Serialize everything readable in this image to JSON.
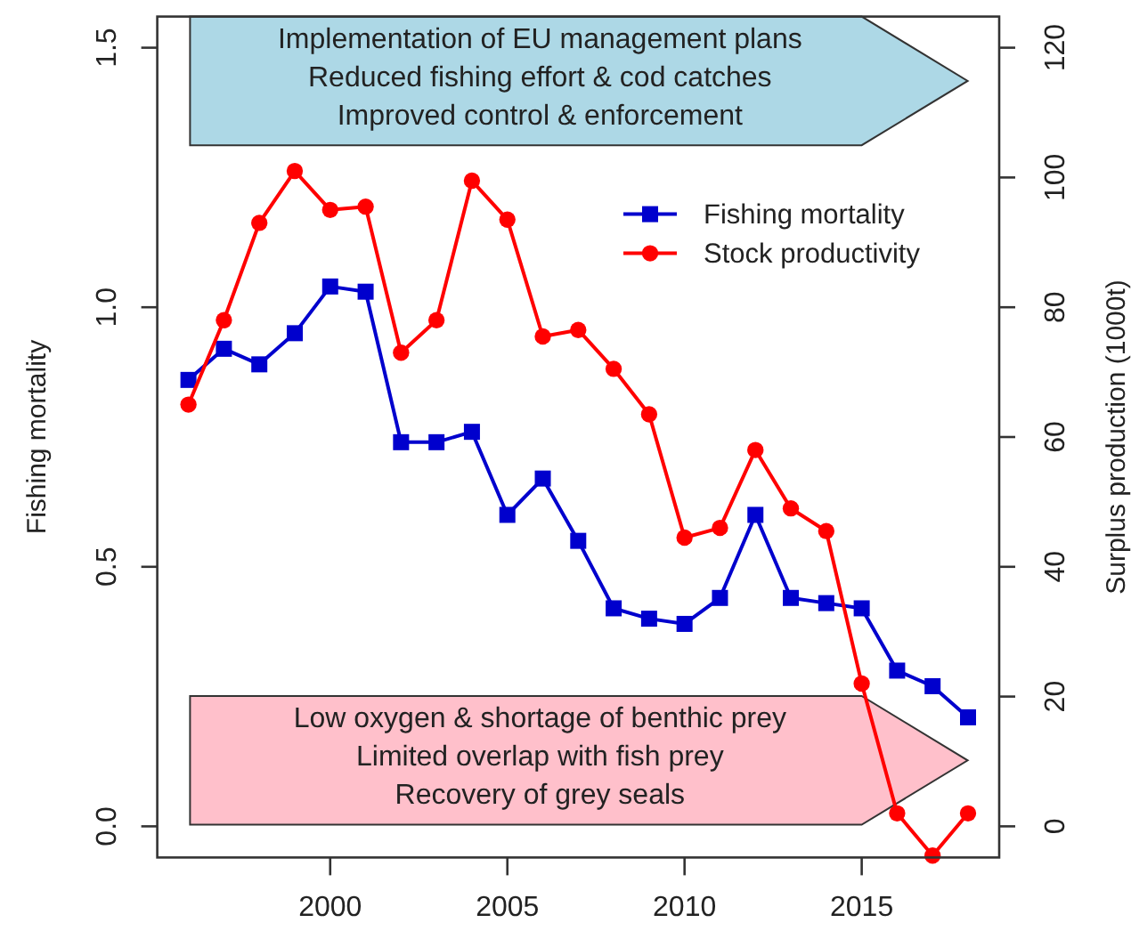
{
  "chart_data": {
    "type": "line",
    "ylabel": "Fishing mortality",
    "y2label": "Surplus production (1000t)",
    "x": [
      1996,
      1997,
      1998,
      1999,
      2000,
      2001,
      2002,
      2003,
      2004,
      2005,
      2006,
      2007,
      2008,
      2009,
      2010,
      2011,
      2012,
      2013,
      2014,
      2015,
      2016,
      2017,
      2018
    ],
    "series": [
      {
        "name": "Fishing mortality",
        "color": "#0000cd",
        "marker": "square",
        "values": [
          0.86,
          0.92,
          0.89,
          0.95,
          1.04,
          1.03,
          0.74,
          0.74,
          0.76,
          0.6,
          0.67,
          0.55,
          0.42,
          0.4,
          0.39,
          0.44,
          0.6,
          0.44,
          0.43,
          0.42,
          0.3,
          0.27,
          0.21
        ]
      },
      {
        "name": "Stock productivity",
        "color": "#ff0000",
        "marker": "circle",
        "axis": "y2",
        "values": [
          65,
          78,
          93,
          101,
          95,
          95.5,
          73,
          78,
          99.5,
          93.5,
          75.5,
          76.5,
          70.5,
          63.5,
          44.5,
          46,
          58,
          49,
          45.5,
          22,
          2,
          -4.5,
          2
        ]
      }
    ],
    "xlim": [
      1995.12,
      2018.88
    ],
    "xticks": [
      2000,
      2005,
      2010,
      2015
    ],
    "ylim": [
      -0.06,
      1.56
    ],
    "yticks": [
      {
        "value": 0,
        "label": "0.0"
      },
      0.5,
      {
        "value": 1,
        "label": "1.0"
      },
      1.5
    ],
    "y2lim": [
      -4.8,
      124.8
    ],
    "y2ticks": [
      0,
      20,
      40,
      60,
      80,
      100,
      120
    ],
    "legend": "top right",
    "line_style": "solid",
    "annotations": [
      "Implementation of EU management plans\nReduced fishing effort & cod catches\nImproved control & enforcement",
      "Low oxygen & shortage of benthic prey\nLimited overlap with fish prey\nRecovery of grey seals"
    ]
  }
}
